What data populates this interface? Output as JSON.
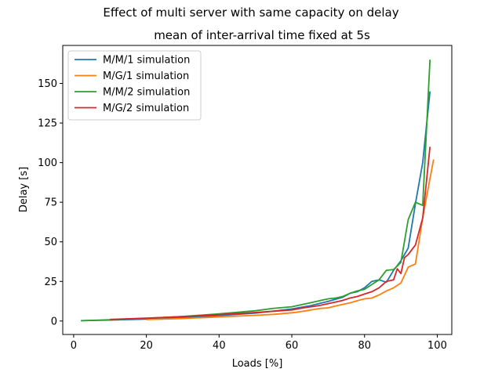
{
  "figure": {
    "suptitle": "Effect of multi server with same capacity on delay"
  },
  "chart_data": {
    "type": "line",
    "title": "mean of inter-arrival time fixed at 5s",
    "xlabel": "Loads [%]",
    "ylabel": "Delay [s]",
    "xlim": [
      -3,
      104
    ],
    "ylim": [
      -8.5,
      174
    ],
    "xticks": [
      0,
      20,
      40,
      60,
      80,
      100
    ],
    "yticks": [
      0,
      25,
      50,
      75,
      100,
      125,
      150
    ],
    "grid": false,
    "legend_position": "upper left",
    "series": [
      {
        "name": "M/M/1 simulation",
        "color": "#1f77b4",
        "x": [
          2,
          10,
          20,
          30,
          40,
          50,
          55,
          60,
          65,
          70,
          74,
          76,
          78,
          80,
          82,
          84,
          86,
          88,
          90,
          92,
          94,
          96,
          98
        ],
        "y": [
          0.2,
          0.6,
          1.2,
          2.1,
          3.4,
          5.0,
          6.3,
          7.6,
          9.6,
          12.4,
          15.0,
          17.5,
          18.5,
          21.0,
          25.0,
          26.0,
          24.5,
          32.0,
          38.0,
          46.0,
          74.0,
          100.0,
          145.0
        ]
      },
      {
        "name": "M/G/1 simulation",
        "color": "#ff7f0e",
        "x": [
          20,
          30,
          40,
          50,
          55,
          60,
          62,
          64,
          66,
          68,
          70,
          72,
          74,
          76,
          78,
          80,
          82,
          84,
          86,
          88,
          90,
          92,
          94,
          96,
          98,
          99
        ],
        "y": [
          0.9,
          1.6,
          2.6,
          3.6,
          4.2,
          5.2,
          5.8,
          6.5,
          7.3,
          8.0,
          8.3,
          9.5,
          10.5,
          11.5,
          12.8,
          14.0,
          14.5,
          16.5,
          19.0,
          21.0,
          24.0,
          34.0,
          36.0,
          65.0,
          90.0,
          102.0
        ]
      },
      {
        "name": "M/M/2 simulation",
        "color": "#2ca02c",
        "x": [
          2,
          10,
          20,
          30,
          40,
          50,
          55,
          60,
          62,
          64,
          66,
          68,
          70,
          72,
          74,
          76,
          78,
          80,
          82,
          84,
          86,
          88,
          90,
          92,
          94,
          96,
          98
        ],
        "y": [
          0.2,
          0.8,
          1.7,
          2.9,
          4.5,
          6.5,
          8.0,
          9.0,
          10.0,
          11.0,
          12.0,
          13.0,
          14.0,
          14.5,
          15.5,
          17.5,
          19.0,
          20.0,
          23.0,
          26.0,
          32.0,
          32.5,
          37.0,
          64.0,
          75.0,
          73.0,
          165.0
        ]
      },
      {
        "name": "M/G/2 simulation",
        "color": "#d62728",
        "x": [
          10,
          20,
          30,
          40,
          50,
          55,
          60,
          62,
          64,
          66,
          68,
          70,
          72,
          74,
          76,
          78,
          80,
          82,
          84,
          86,
          88,
          89,
          90,
          91,
          92,
          94,
          96,
          98
        ],
        "y": [
          1.0,
          1.8,
          2.8,
          4.0,
          5.4,
          6.2,
          7.0,
          7.8,
          8.6,
          9.2,
          10.0,
          11.0,
          12.0,
          13.0,
          14.5,
          15.5,
          17.0,
          18.5,
          21.0,
          25.0,
          26.0,
          33.0,
          30.0,
          40.0,
          42.0,
          48.0,
          65.0,
          110.0
        ]
      }
    ]
  }
}
